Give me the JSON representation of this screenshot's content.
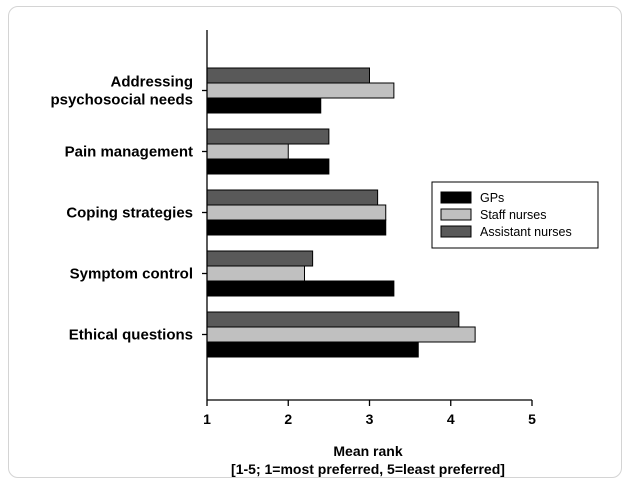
{
  "chart_data": {
    "type": "bar",
    "orientation": "horizontal",
    "categories": [
      [
        "Addressing",
        "psychosocial needs"
      ],
      [
        "Pain management"
      ],
      [
        "Coping strategies"
      ],
      [
        "Symptom control"
      ],
      [
        "Ethical questions"
      ]
    ],
    "series": [
      {
        "name": "Assistant nurses",
        "color": "#595959",
        "values": [
          3.0,
          2.5,
          3.1,
          2.3,
          4.1
        ]
      },
      {
        "name": "Staff nurses",
        "color": "#c0c0c0",
        "values": [
          3.3,
          2.0,
          3.2,
          2.2,
          4.3
        ]
      },
      {
        "name": "GPs",
        "color": "#000000",
        "values": [
          2.4,
          2.5,
          3.2,
          3.3,
          3.6
        ]
      }
    ],
    "legend_order": [
      "GPs",
      "Staff nurses",
      "Assistant nurses"
    ],
    "legend_position": "right",
    "xlim": [
      1,
      5
    ],
    "xticks": [
      1,
      2,
      3,
      4,
      5
    ],
    "xlabel": [
      "Mean rank",
      "[1-5; 1=most preferred, 5=least preferred]"
    ],
    "title": "",
    "grid": false
  }
}
